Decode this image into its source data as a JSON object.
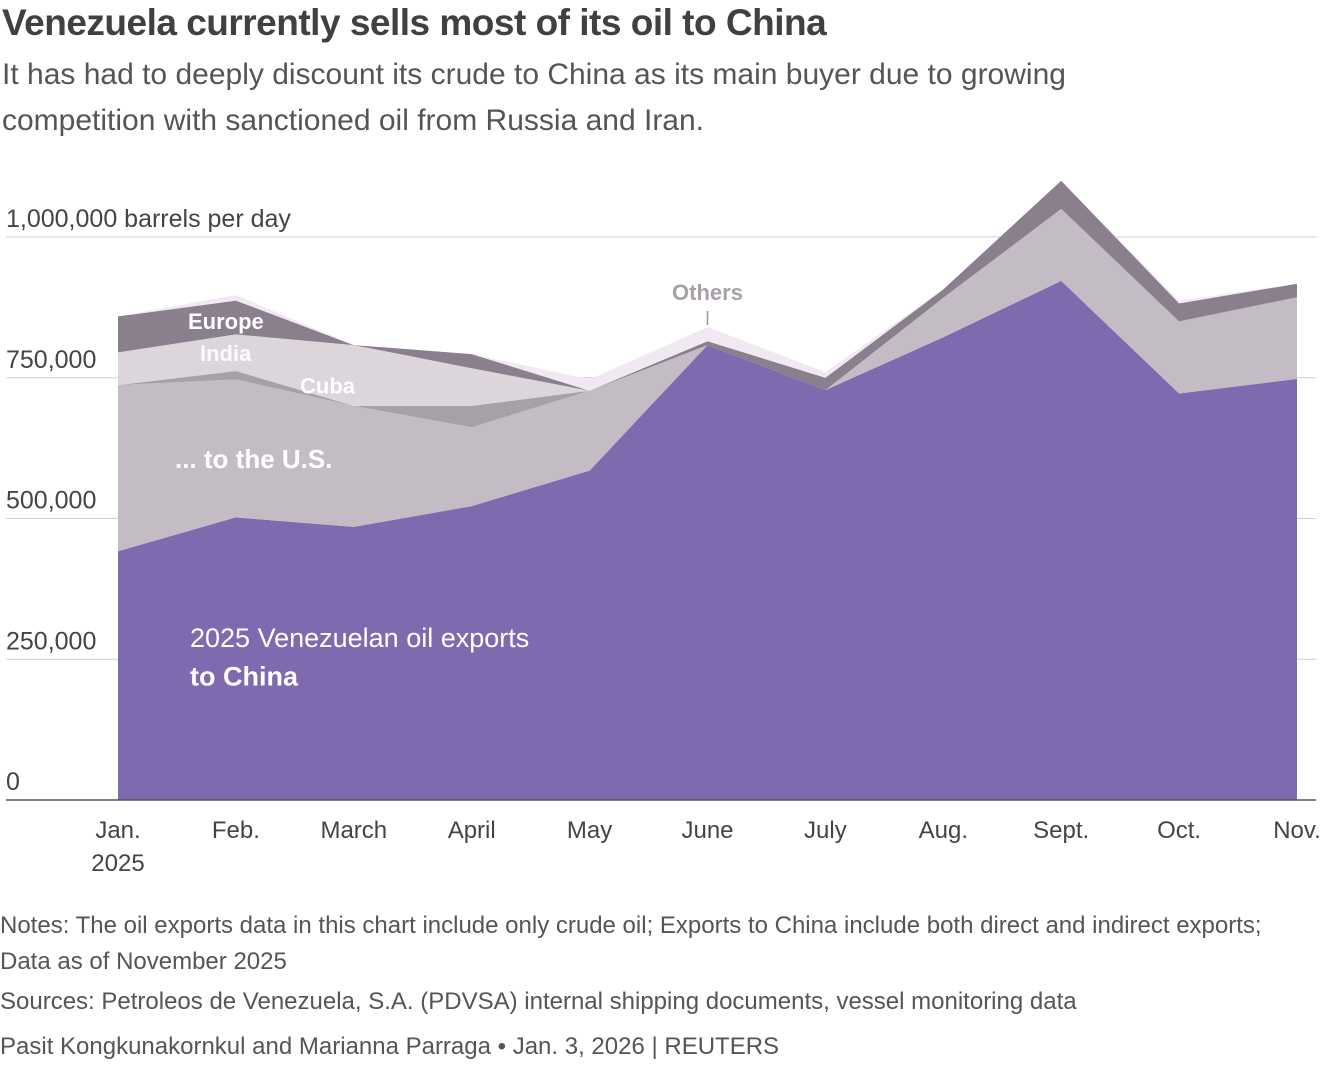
{
  "chart_data": {
    "type": "area",
    "stacked": true,
    "title": "Venezuela currently sells most of its oil to China",
    "subtitle": "It has had to deeply discount its crude to China as its main buyer due to growing competition with sanctioned oil from Russia and Iran.",
    "ylabel": "barrels per day",
    "ylim": [
      0,
      1000000
    ],
    "yticks": [
      {
        "value": 0,
        "label": "0"
      },
      {
        "value": 250000,
        "label": "250,000"
      },
      {
        "value": 500000,
        "label": "500,000"
      },
      {
        "value": 750000,
        "label": "750,000"
      },
      {
        "value": 1000000,
        "label": "1,000,000 barrels per day"
      }
    ],
    "categories": [
      "Jan.",
      "Feb.",
      "March",
      "April",
      "May",
      "June",
      "July",
      "Aug.",
      "Sept.",
      "Oct.",
      "Nov."
    ],
    "first_category_year": "2025",
    "series": [
      {
        "name": "China",
        "label_line1": "2025 Venezuelan oil exports",
        "label_line2": "to China",
        "color": "#7f6ab0",
        "values": [
          442000,
          502000,
          485000,
          522000,
          585000,
          808000,
          728000,
          822000,
          922000,
          722000,
          748000
        ]
      },
      {
        "name": "U.S.",
        "label": "... to the U.S.",
        "color": "#c4bcc4",
        "values": [
          295000,
          245000,
          215000,
          140000,
          142000,
          0,
          0,
          70000,
          128000,
          128000,
          145000
        ]
      },
      {
        "name": "Cuba",
        "label": "Cuba",
        "color": "#a8a0a8",
        "values": [
          0,
          15000,
          0,
          38000,
          0,
          0,
          0,
          0,
          0,
          0,
          0
        ]
      },
      {
        "name": "India",
        "label": "India",
        "color": "#dcd6dc",
        "values": [
          58000,
          65000,
          108000,
          67000,
          0,
          0,
          0,
          0,
          0,
          0,
          0
        ]
      },
      {
        "name": "Europe",
        "label": "Europe",
        "color": "#8a7f8c",
        "values": [
          64000,
          60000,
          0,
          25000,
          0,
          7000,
          22000,
          15000,
          50000,
          32000,
          24000
        ]
      },
      {
        "name": "Others",
        "label": "Others",
        "color": "#f1e9f2",
        "values": [
          0,
          10000,
          0,
          0,
          20000,
          25000,
          10000,
          0,
          0,
          5000,
          0
        ]
      }
    ]
  },
  "notes": "Notes: The oil exports data in this chart include only crude oil; Exports to China include both direct and indirect exports; Data as of November 2025",
  "sources": "Sources: Petroleos de Venezuela, S.A. (PDVSA) internal shipping documents, vessel monitoring data",
  "byline": "Pasit Kongkunakornkul and Marianna Parraga • Jan. 3, 2026 | REUTERS"
}
